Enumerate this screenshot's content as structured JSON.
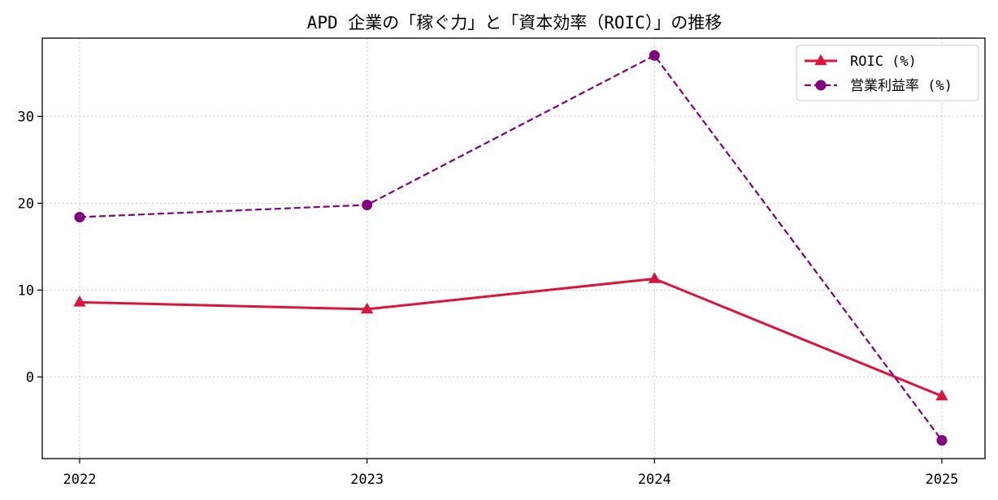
{
  "chart_data": {
    "type": "line",
    "title": "APD 企業の「稼ぐ力」と「資本効率（ROIC）」の推移",
    "xlabel": "",
    "ylabel": "",
    "x": [
      "2022",
      "2023",
      "2024",
      "2025"
    ],
    "xlim": [
      2021.87,
      2025.15
    ],
    "ylim": [
      -9.4,
      39.0
    ],
    "yticks": [
      0,
      10,
      20,
      30
    ],
    "grid": true,
    "legend_position": "top-right",
    "series": [
      {
        "name": "ROIC (%)",
        "values": [
          8.6,
          7.8,
          11.3,
          -2.2
        ],
        "color": "#dc143c",
        "marker": "triangle",
        "line_style": "solid"
      },
      {
        "name": "営業利益率 (%)",
        "values": [
          18.4,
          19.8,
          37.0,
          -7.3
        ],
        "color": "#800080",
        "marker": "circle",
        "line_style": "dashed"
      }
    ]
  }
}
